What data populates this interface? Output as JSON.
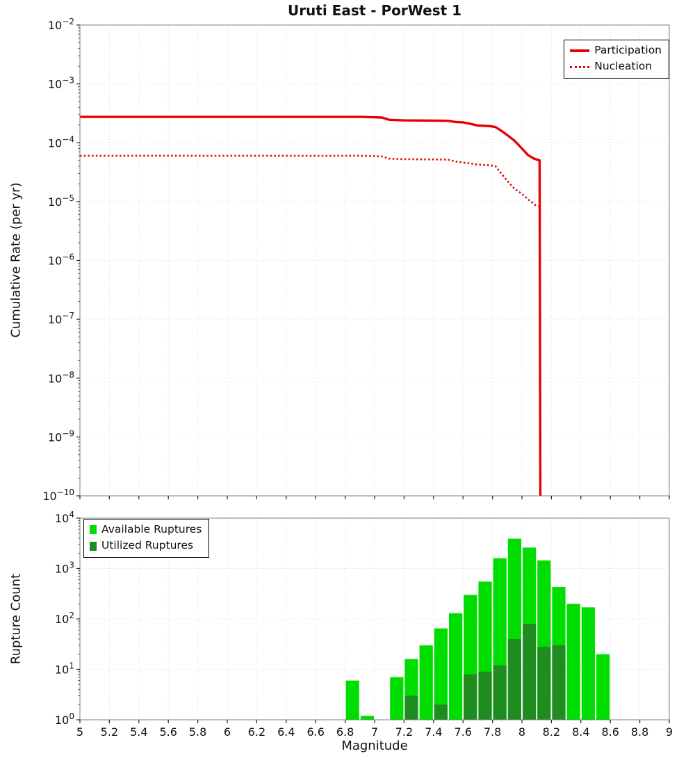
{
  "figure": {
    "background": "#ffffff"
  },
  "chart_data": [
    {
      "type": "line",
      "title": "Uruti East - PorWest 1",
      "xlabel": "",
      "ylabel": "Cumulative Rate (per yr)",
      "xlim": [
        5,
        9
      ],
      "x_tick_step": 0.2,
      "show_x_tick_labels": false,
      "ylim_log10": [
        -10,
        -2
      ],
      "grid": "dotted",
      "legend_position": "top-right",
      "series": [
        {
          "name": "Participation",
          "color": "#e80000",
          "style": "solid",
          "width": 3.4,
          "points": [
            [
              5.0,
              0.000275
            ],
            [
              6.0,
              0.000275
            ],
            [
              6.9,
              0.000275
            ],
            [
              7.0,
              0.00027
            ],
            [
              7.05,
              0.000268
            ],
            [
              7.1,
              0.000245
            ],
            [
              7.2,
              0.00024
            ],
            [
              7.4,
              0.000238
            ],
            [
              7.5,
              0.000235
            ],
            [
              7.55,
              0.000225
            ],
            [
              7.6,
              0.000222
            ],
            [
              7.65,
              0.00021
            ],
            [
              7.7,
              0.000196
            ],
            [
              7.78,
              0.000192
            ],
            [
              7.82,
              0.000185
            ],
            [
              7.86,
              0.00016
            ],
            [
              7.9,
              0.000135
            ],
            [
              7.95,
              0.000108
            ],
            [
              8.0,
              8e-05
            ],
            [
              8.04,
              6.2e-05
            ],
            [
              8.08,
              5.4e-05
            ],
            [
              8.12,
              5e-05
            ],
            [
              8.125,
              1e-10
            ]
          ]
        },
        {
          "name": "Nucleation",
          "color": "#e80000",
          "style": "dotted",
          "width": 2.6,
          "points": [
            [
              5.0,
              6e-05
            ],
            [
              6.9,
              6e-05
            ],
            [
              7.0,
              5.9e-05
            ],
            [
              7.05,
              5.85e-05
            ],
            [
              7.1,
              5.35e-05
            ],
            [
              7.2,
              5.25e-05
            ],
            [
              7.45,
              5.2e-05
            ],
            [
              7.5,
              5.15e-05
            ],
            [
              7.55,
              4.8e-05
            ],
            [
              7.6,
              4.6e-05
            ],
            [
              7.65,
              4.45e-05
            ],
            [
              7.7,
              4.25e-05
            ],
            [
              7.78,
              4.15e-05
            ],
            [
              7.82,
              4e-05
            ],
            [
              7.86,
              3e-05
            ],
            [
              7.9,
              2.25e-05
            ],
            [
              7.95,
              1.65e-05
            ],
            [
              8.0,
              1.35e-05
            ],
            [
              8.05,
              1.05e-05
            ],
            [
              8.09,
              8.8e-06
            ],
            [
              8.12,
              8.2e-06
            ],
            [
              8.125,
              1e-10
            ]
          ]
        }
      ]
    },
    {
      "type": "bar",
      "title": "",
      "xlabel": "Magnitude",
      "ylabel": "Rupture Count",
      "xlim": [
        5,
        9
      ],
      "x_tick_step": 0.2,
      "show_x_tick_labels": true,
      "ylim_log10": [
        0,
        4
      ],
      "bin_width": 0.1,
      "grid": "dotted",
      "legend_position": "top-left",
      "categories": [
        6.8,
        6.9,
        7.0,
        7.1,
        7.2,
        7.3,
        7.4,
        7.5,
        7.6,
        7.7,
        7.8,
        7.9,
        8.0,
        8.1,
        8.2,
        8.3,
        8.4,
        8.5
      ],
      "series": [
        {
          "name": "Available Ruptures",
          "color": "#00dd00",
          "values": [
            6,
            1.2,
            0,
            7,
            16,
            30,
            65,
            130,
            300,
            550,
            1600,
            3900,
            2600,
            1450,
            430,
            200,
            170,
            20
          ]
        },
        {
          "name": "Utilized Ruptures",
          "color": "#1e8c1e",
          "values": [
            0,
            0,
            0,
            0,
            3,
            0,
            2,
            0,
            8,
            9,
            12,
            40,
            80,
            28,
            30,
            0,
            0,
            0
          ]
        }
      ]
    }
  ]
}
